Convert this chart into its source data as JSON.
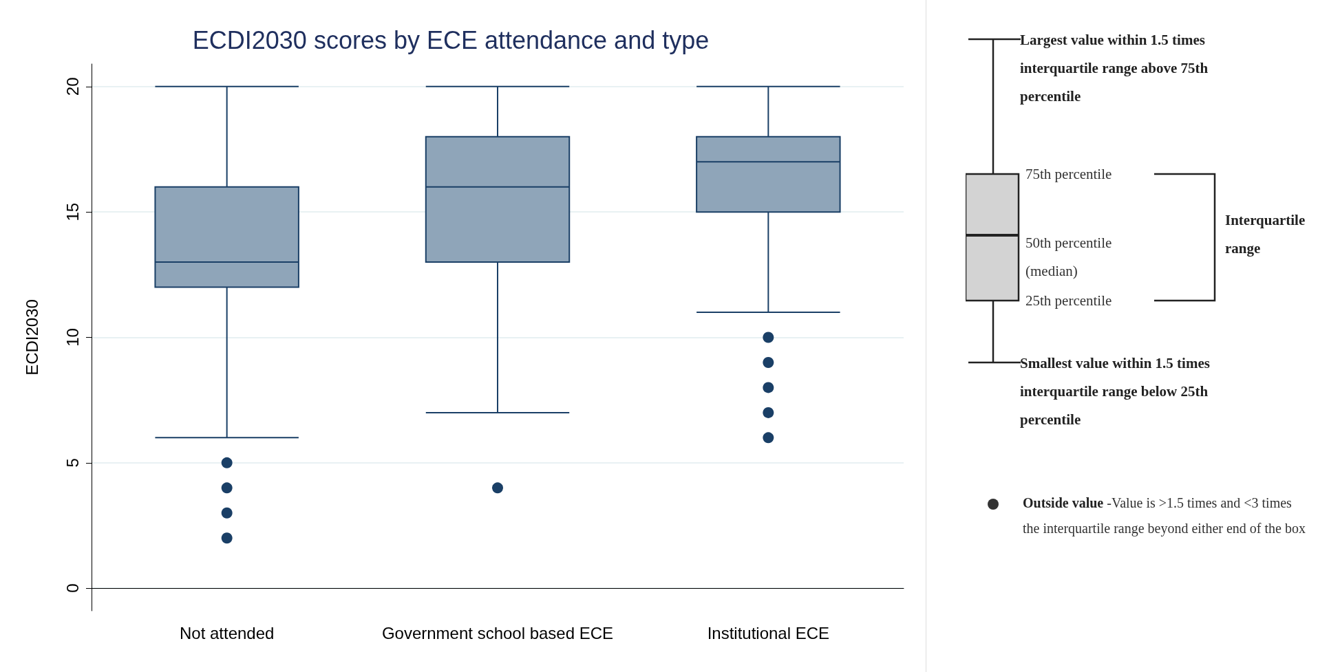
{
  "chart_data": {
    "type": "box",
    "title": "ECDI2030 scores by ECE attendance and type",
    "ylabel": "ECDI2030",
    "categories": [
      "Not attended",
      "Government school based ECE",
      "Institutional ECE"
    ],
    "color": "#8fa5b9",
    "boxes": [
      {
        "low": 6,
        "q1": 12,
        "median": 13,
        "q3": 16,
        "high": 20,
        "outliers": [
          5,
          4,
          3,
          2
        ]
      },
      {
        "low": 7,
        "q1": 13,
        "median": 16,
        "q3": 18,
        "high": 20,
        "outliers": [
          4
        ]
      },
      {
        "low": 11,
        "q1": 15,
        "median": 17,
        "q3": 18,
        "high": 20,
        "outliers": [
          10,
          9,
          8,
          7,
          6
        ]
      }
    ],
    "ylim": [
      -0.9,
      20.9
    ],
    "yticks": [
      0,
      5,
      10,
      15,
      20
    ],
    "grid": "y",
    "annotations": [
      "Largest value within 1.5 times interquartile range above 75th percentile",
      "75th percentile",
      "50th percentile (median)",
      "25th percentile",
      "Interquartile range",
      "Smallest value within 1.5 times interquartile range below 25th percentile",
      "Outside value",
      "-Value is >1.5 times and <3 times the interquartile range beyond either end of the box"
    ]
  }
}
